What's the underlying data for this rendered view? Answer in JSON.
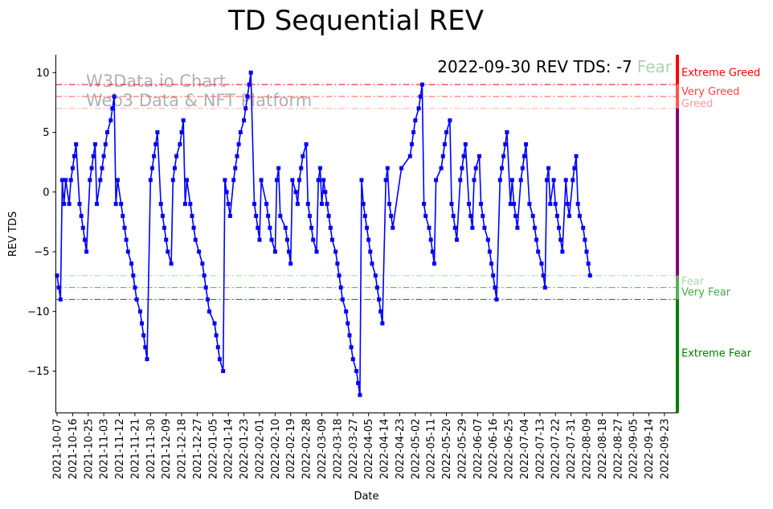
{
  "chart_data": {
    "type": "line",
    "title": "TD Sequential REV",
    "xlabel": "Date",
    "ylabel": "REV TDS",
    "ylim": [
      -18.5,
      11.5
    ],
    "yticks": [
      10,
      5,
      0,
      -5,
      -10,
      -15
    ],
    "ytick_labels": [
      "10",
      "5",
      "0",
      "−5",
      "−10",
      "−15"
    ],
    "xtick_labels": [
      "2021-10-07",
      "2021-10-16",
      "2021-10-25",
      "2021-11-03",
      "2021-11-12",
      "2021-11-21",
      "2021-11-30",
      "2021-12-09",
      "2021-12-18",
      "2021-12-27",
      "2022-01-05",
      "2022-01-14",
      "2022-01-23",
      "2022-02-01",
      "2022-02-10",
      "2022-02-19",
      "2022-02-28",
      "2022-03-09",
      "2022-03-18",
      "2022-03-27",
      "2022-04-05",
      "2022-04-14",
      "2022-04-23",
      "2022-05-02",
      "2022-05-11",
      "2022-05-20",
      "2022-05-29",
      "2022-06-07",
      "2022-06-16",
      "2022-06-25",
      "2022-07-04",
      "2022-07-13",
      "2022-07-22",
      "2022-07-31",
      "2022-08-09",
      "2022-08-18",
      "2022-08-27",
      "2022-09-05",
      "2022-09-14",
      "2022-09-23"
    ],
    "x_start": "2021-10-07",
    "x_end": "2022-09-30",
    "watermark": [
      "W3Data.io Chart",
      "Web3 Data & NFT Platform"
    ],
    "annotation": {
      "prefix": "2022-09-30 REV TDS: -7",
      "label": "Fear"
    },
    "reference_lines": [
      {
        "name": "Extreme Greed",
        "value": 9,
        "color": "#ff0000"
      },
      {
        "name": "Very Greed",
        "value": 8,
        "color": "#ff5555"
      },
      {
        "name": "Greed",
        "value": 7,
        "color": "#ffaaaa"
      },
      {
        "name": "Fear",
        "value": -7,
        "color": "#aad6aa"
      },
      {
        "name": "Very Fear",
        "value": -8,
        "color": "#55b055"
      },
      {
        "name": "Extreme Fear",
        "value": -9,
        "color": "#008000"
      }
    ],
    "side_labels": [
      {
        "name": "Extreme Greed",
        "color": "#ff0000",
        "y": 10
      },
      {
        "name": "Very Greed",
        "color": "#ff4444",
        "y": 8.4
      },
      {
        "name": "Greed",
        "color": "#ff9999",
        "y": 7.4
      },
      {
        "name": "Fear",
        "color": "#aad6aa",
        "y": -7.5
      },
      {
        "name": "Very Fear",
        "color": "#44aa44",
        "y": -8.4
      },
      {
        "name": "Extreme Fear",
        "color": "#008000",
        "y": -13.5
      }
    ],
    "series": [
      {
        "name": "REV TDS",
        "color": "#0000ff",
        "points": [
          [
            0,
            -7
          ],
          [
            1,
            -8
          ],
          [
            2,
            -9
          ],
          [
            3,
            1
          ],
          [
            4,
            -1
          ],
          [
            5,
            1
          ],
          [
            7,
            -1
          ],
          [
            8,
            1
          ],
          [
            9,
            2
          ],
          [
            10,
            3
          ],
          [
            11,
            4
          ],
          [
            13,
            -1
          ],
          [
            14,
            -2
          ],
          [
            15,
            -3
          ],
          [
            16,
            -4
          ],
          [
            17,
            -5
          ],
          [
            19,
            1
          ],
          [
            20,
            2
          ],
          [
            21,
            3
          ],
          [
            22,
            4
          ],
          [
            23,
            -1
          ],
          [
            25,
            1
          ],
          [
            26,
            2
          ],
          [
            27,
            3
          ],
          [
            28,
            4
          ],
          [
            29,
            5
          ],
          [
            31,
            6
          ],
          [
            32,
            7
          ],
          [
            33,
            8
          ],
          [
            34,
            -1
          ],
          [
            35,
            1
          ],
          [
            37,
            -1
          ],
          [
            38,
            -2
          ],
          [
            39,
            -3
          ],
          [
            40,
            -4
          ],
          [
            41,
            -5
          ],
          [
            43,
            -6
          ],
          [
            44,
            -7
          ],
          [
            45,
            -8
          ],
          [
            46,
            -9
          ],
          [
            48,
            -10
          ],
          [
            49,
            -11
          ],
          [
            50,
            -12
          ],
          [
            51,
            -13
          ],
          [
            52,
            -14
          ],
          [
            54,
            1
          ],
          [
            55,
            2
          ],
          [
            56,
            3
          ],
          [
            57,
            4
          ],
          [
            58,
            5
          ],
          [
            60,
            -1
          ],
          [
            61,
            -2
          ],
          [
            62,
            -3
          ],
          [
            63,
            -4
          ],
          [
            64,
            -5
          ],
          [
            66,
            -6
          ],
          [
            67,
            1
          ],
          [
            68,
            2
          ],
          [
            69,
            3
          ],
          [
            71,
            4
          ],
          [
            72,
            5
          ],
          [
            73,
            6
          ],
          [
            74,
            -1
          ],
          [
            75,
            1
          ],
          [
            77,
            -1
          ],
          [
            78,
            -2
          ],
          [
            79,
            -3
          ],
          [
            80,
            -4
          ],
          [
            82,
            -5
          ],
          [
            84,
            -6
          ],
          [
            85,
            -7
          ],
          [
            86,
            -8
          ],
          [
            87,
            -9
          ],
          [
            88,
            -10
          ],
          [
            91,
            -11
          ],
          [
            92,
            -12
          ],
          [
            93,
            -13
          ],
          [
            94,
            -14
          ],
          [
            96,
            -15
          ],
          [
            97,
            1
          ],
          [
            98,
            0
          ],
          [
            99,
            -1
          ],
          [
            100,
            -2
          ],
          [
            102,
            1
          ],
          [
            103,
            2
          ],
          [
            104,
            3
          ],
          [
            105,
            4
          ],
          [
            106,
            5
          ],
          [
            108,
            6
          ],
          [
            109,
            7
          ],
          [
            110,
            8
          ],
          [
            111,
            9
          ],
          [
            112,
            10
          ],
          [
            114,
            -1
          ],
          [
            115,
            -2
          ],
          [
            116,
            -3
          ],
          [
            117,
            -4
          ],
          [
            118,
            1
          ],
          [
            121,
            -1
          ],
          [
            122,
            -2
          ],
          [
            123,
            -3
          ],
          [
            124,
            -4
          ],
          [
            126,
            -5
          ],
          [
            127,
            1
          ],
          [
            128,
            2
          ],
          [
            129,
            -2
          ],
          [
            132,
            -3
          ],
          [
            133,
            -4
          ],
          [
            134,
            -5
          ],
          [
            135,
            -6
          ],
          [
            136,
            1
          ],
          [
            138,
            0
          ],
          [
            139,
            -1
          ],
          [
            140,
            1
          ],
          [
            141,
            2
          ],
          [
            142,
            3
          ],
          [
            144,
            4
          ],
          [
            145,
            -1
          ],
          [
            146,
            -2
          ],
          [
            147,
            -3
          ],
          [
            148,
            -4
          ],
          [
            150,
            -5
          ],
          [
            151,
            1
          ],
          [
            152,
            2
          ],
          [
            153,
            -1
          ],
          [
            154,
            1
          ],
          [
            155,
            0
          ],
          [
            156,
            -1
          ],
          [
            157,
            -2
          ],
          [
            158,
            -3
          ],
          [
            159,
            -4
          ],
          [
            161,
            -5
          ],
          [
            162,
            -6
          ],
          [
            163,
            -7
          ],
          [
            164,
            -8
          ],
          [
            165,
            -9
          ],
          [
            167,
            -10
          ],
          [
            168,
            -11
          ],
          [
            169,
            -12
          ],
          [
            170,
            -13
          ],
          [
            171,
            -14
          ],
          [
            173,
            -15
          ],
          [
            174,
            -16
          ],
          [
            175,
            -17
          ],
          [
            176,
            1
          ],
          [
            177,
            -1
          ],
          [
            178,
            -2
          ],
          [
            179,
            -3
          ],
          [
            180,
            -4
          ],
          [
            181,
            -5
          ],
          [
            182,
            -6
          ],
          [
            184,
            -7
          ],
          [
            185,
            -8
          ],
          [
            186,
            -9
          ],
          [
            187,
            -10
          ],
          [
            188,
            -11
          ],
          [
            190,
            1
          ],
          [
            191,
            2
          ],
          [
            192,
            -1
          ],
          [
            193,
            -2
          ],
          [
            194,
            -3
          ],
          [
            199,
            2
          ],
          [
            204,
            3
          ],
          [
            205,
            4
          ],
          [
            206,
            5
          ],
          [
            207,
            6
          ],
          [
            209,
            7
          ],
          [
            210,
            8
          ],
          [
            211,
            9
          ],
          [
            212,
            -1
          ],
          [
            213,
            -2
          ],
          [
            215,
            -3
          ],
          [
            216,
            -4
          ],
          [
            217,
            -5
          ],
          [
            218,
            -6
          ],
          [
            219,
            1
          ],
          [
            222,
            2
          ],
          [
            223,
            3
          ],
          [
            224,
            4
          ],
          [
            225,
            5
          ],
          [
            227,
            6
          ],
          [
            228,
            -1
          ],
          [
            229,
            -2
          ],
          [
            230,
            -3
          ],
          [
            231,
            -4
          ],
          [
            233,
            1
          ],
          [
            234,
            2
          ],
          [
            235,
            3
          ],
          [
            236,
            4
          ],
          [
            238,
            -1
          ],
          [
            239,
            -2
          ],
          [
            240,
            -3
          ],
          [
            241,
            1
          ],
          [
            242,
            2
          ],
          [
            244,
            3
          ],
          [
            245,
            -1
          ],
          [
            246,
            -2
          ],
          [
            247,
            -3
          ],
          [
            249,
            -4
          ],
          [
            250,
            -5
          ],
          [
            251,
            -6
          ],
          [
            252,
            -7
          ],
          [
            253,
            -8
          ],
          [
            254,
            -9
          ],
          [
            256,
            1
          ],
          [
            257,
            2
          ],
          [
            258,
            3
          ],
          [
            259,
            4
          ],
          [
            260,
            5
          ],
          [
            262,
            -1
          ],
          [
            263,
            1
          ],
          [
            264,
            -1
          ],
          [
            265,
            -2
          ],
          [
            266,
            -3
          ],
          [
            268,
            1
          ],
          [
            269,
            2
          ],
          [
            270,
            3
          ],
          [
            271,
            4
          ],
          [
            273,
            -1
          ],
          [
            275,
            -2
          ],
          [
            276,
            -3
          ],
          [
            277,
            -4
          ],
          [
            278,
            -5
          ],
          [
            280,
            -6
          ],
          [
            281,
            -7
          ],
          [
            282,
            -8
          ],
          [
            283,
            1
          ],
          [
            284,
            2
          ],
          [
            285,
            -1
          ],
          [
            287,
            1
          ],
          [
            288,
            -1
          ],
          [
            289,
            -2
          ],
          [
            290,
            -3
          ],
          [
            291,
            -4
          ],
          [
            292,
            -5
          ],
          [
            294,
            1
          ],
          [
            295,
            -1
          ],
          [
            296,
            -2
          ],
          [
            298,
            1
          ],
          [
            299,
            2
          ],
          [
            300,
            3
          ],
          [
            301,
            -1
          ],
          [
            302,
            -2
          ],
          [
            304,
            -3
          ],
          [
            305,
            -4
          ],
          [
            306,
            -5
          ],
          [
            307,
            -6
          ],
          [
            308,
            -7
          ]
        ]
      }
    ]
  }
}
